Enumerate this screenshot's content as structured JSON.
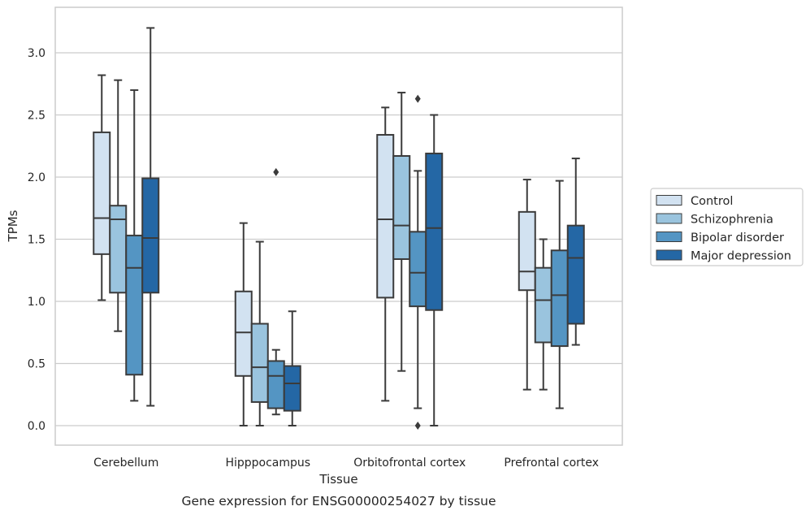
{
  "chart_data": {
    "type": "boxplot",
    "caption": "Gene expression for ENSG00000254027 by tissue",
    "xlabel": "Tissue",
    "ylabel": "TPMs",
    "ylim": [
      -0.15,
      3.35
    ],
    "yticks": [
      "0.0",
      "0.5",
      "1.0",
      "1.5",
      "2.0",
      "2.5",
      "3.0"
    ],
    "ytick_values": [
      0,
      0.5,
      1.0,
      1.5,
      2.0,
      2.5,
      3.0
    ],
    "grid": "horizontal",
    "legend_position": "right",
    "categories": [
      "Cerebellum",
      "Hipppocampus",
      "Orbitofrontal cortex",
      "Prefrontal cortex"
    ],
    "series": [
      {
        "name": "Control",
        "color": "#d2e2f1",
        "boxes": [
          {
            "whislo": 1.01,
            "q1": 1.38,
            "med": 1.67,
            "q3": 2.36,
            "whishi": 2.82,
            "fliers": []
          },
          {
            "whislo": 0.0,
            "q1": 0.4,
            "med": 0.75,
            "q3": 1.08,
            "whishi": 1.63,
            "fliers": []
          },
          {
            "whislo": 0.2,
            "q1": 1.03,
            "med": 1.66,
            "q3": 2.34,
            "whishi": 2.56,
            "fliers": []
          },
          {
            "whislo": 0.29,
            "q1": 1.09,
            "med": 1.24,
            "q3": 1.72,
            "whishi": 1.98,
            "fliers": []
          }
        ]
      },
      {
        "name": "Schizophrenia",
        "color": "#9ac4de",
        "boxes": [
          {
            "whislo": 0.76,
            "q1": 1.07,
            "med": 1.66,
            "q3": 1.77,
            "whishi": 2.78,
            "fliers": []
          },
          {
            "whislo": 0.0,
            "q1": 0.19,
            "med": 0.47,
            "q3": 0.82,
            "whishi": 1.48,
            "fliers": []
          },
          {
            "whislo": 0.44,
            "q1": 1.34,
            "med": 1.61,
            "q3": 2.17,
            "whishi": 2.68,
            "fliers": []
          },
          {
            "whislo": 0.29,
            "q1": 0.67,
            "med": 1.01,
            "q3": 1.27,
            "whishi": 1.5,
            "fliers": []
          }
        ]
      },
      {
        "name": "Bipolar disorder",
        "color": "#5495c3",
        "boxes": [
          {
            "whislo": 0.2,
            "q1": 0.41,
            "med": 1.27,
            "q3": 1.53,
            "whishi": 2.7,
            "fliers": []
          },
          {
            "whislo": 0.09,
            "q1": 0.14,
            "med": 0.4,
            "q3": 0.52,
            "whishi": 0.61,
            "fliers": [
              2.04
            ]
          },
          {
            "whislo": 0.14,
            "q1": 0.96,
            "med": 1.23,
            "q3": 1.56,
            "whishi": 2.05,
            "fliers": [
              2.63,
              0.0
            ]
          },
          {
            "whislo": 0.14,
            "q1": 0.64,
            "med": 1.05,
            "q3": 1.41,
            "whishi": 1.97,
            "fliers": []
          }
        ]
      },
      {
        "name": "Major depression",
        "color": "#2467a5",
        "boxes": [
          {
            "whislo": 0.16,
            "q1": 1.07,
            "med": 1.51,
            "q3": 1.99,
            "whishi": 3.2,
            "fliers": []
          },
          {
            "whislo": 0.0,
            "q1": 0.12,
            "med": 0.34,
            "q3": 0.48,
            "whishi": 0.92,
            "fliers": []
          },
          {
            "whislo": 0.0,
            "q1": 0.93,
            "med": 1.59,
            "q3": 2.19,
            "whishi": 2.5,
            "fliers": []
          },
          {
            "whislo": 0.65,
            "q1": 0.82,
            "med": 1.35,
            "q3": 1.61,
            "whishi": 2.15,
            "fliers": []
          }
        ]
      }
    ]
  }
}
